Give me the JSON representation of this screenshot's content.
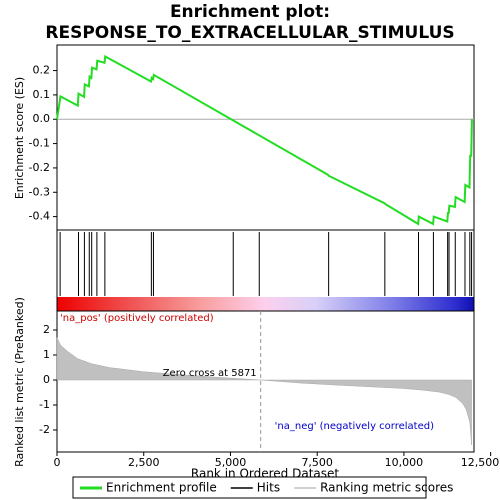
{
  "chart_data": [
    {
      "type": "line",
      "title_lines": [
        "Enrichment plot:",
        "RESPONSE_TO_EXTRACELLULAR_STIMULUS"
      ],
      "ylabel": "Enrichment score (ES)",
      "xlim": [
        0,
        12020
      ],
      "ylim": [
        -0.455,
        0.305
      ],
      "yticks": [
        -0.4,
        -0.3,
        -0.2,
        -0.1,
        {
          "value": 0,
          "label": "0.0"
        },
        0.1,
        0.2
      ],
      "x": [
        0,
        100,
        600,
        620,
        780,
        800,
        920,
        940,
        990,
        1010,
        1140,
        1160,
        1370,
        1390,
        2710,
        2730,
        2770,
        2790,
        7810,
        7830,
        9440,
        9460,
        10410,
        10430,
        10840,
        10860,
        11250,
        11270,
        11290,
        11310,
        11470,
        11490,
        11750,
        11770,
        11890,
        11910,
        11940,
        11960
      ],
      "series": [
        {
          "name": "Enrichment profile",
          "color": "#22dd22",
          "values": [
            0,
            0.094,
            0.056,
            0.105,
            0.092,
            0.143,
            0.135,
            0.175,
            0.17,
            0.212,
            0.205,
            0.24,
            0.232,
            0.258,
            0.155,
            0.17,
            0.165,
            0.182,
            -0.228,
            -0.232,
            -0.345,
            -0.348,
            -0.43,
            -0.4,
            -0.43,
            -0.4,
            -0.42,
            -0.385,
            -0.385,
            -0.355,
            -0.36,
            -0.32,
            -0.34,
            -0.27,
            -0.28,
            -0.15,
            -0.15,
            0.0
          ]
        }
      ]
    },
    {
      "type": "hits",
      "xlim": [
        0,
        12020
      ],
      "series": [
        {
          "name": "Hits",
          "color": "#000000",
          "values": [
            90,
            620,
            790,
            930,
            1000,
            1150,
            1380,
            2720,
            2780,
            5080,
            5830,
            7830,
            9450,
            10420,
            10850,
            11260,
            11300,
            11480,
            11760,
            11900,
            11950
          ]
        }
      ]
    },
    {
      "type": "area",
      "ylabel": "Ranked list metric (PreRanked)",
      "xlabel": "Rank in Ordered Dataset",
      "xlim": [
        0,
        12020
      ],
      "ylim": [
        -2.88,
        2.76
      ],
      "xticks": [
        0,
        {
          "value": 2500,
          "label": "2,500"
        },
        {
          "value": 5000,
          "label": "5,000"
        },
        {
          "value": 7500,
          "label": "7,500"
        },
        {
          "value": 10000,
          "label": "10,000"
        },
        {
          "value": 12500,
          "label": "12,500"
        }
      ],
      "yticks": [
        -2,
        -1,
        0,
        1,
        2
      ],
      "x": [
        0,
        100,
        300,
        600,
        1000,
        1500,
        2500,
        3500,
        4500,
        5871,
        7000,
        8000,
        9000,
        10000,
        10500,
        11000,
        11300,
        11500,
        11700,
        11800,
        11900,
        11950
      ],
      "series": [
        {
          "name": "Ranking metric scores",
          "color": "#c0c0c0",
          "values": [
            1.7,
            1.4,
            1.15,
            0.85,
            0.65,
            0.5,
            0.33,
            0.22,
            0.12,
            0,
            -0.12,
            -0.2,
            -0.27,
            -0.34,
            -0.4,
            -0.48,
            -0.58,
            -0.7,
            -0.95,
            -1.2,
            -1.7,
            -2.6
          ]
        }
      ],
      "zero_cross": 5871,
      "zero_cross_label": "Zero cross at 5871",
      "pos_label": "'na_pos' (positively correlated)",
      "neg_label": "'na_neg' (negatively correlated)"
    }
  ]
}
